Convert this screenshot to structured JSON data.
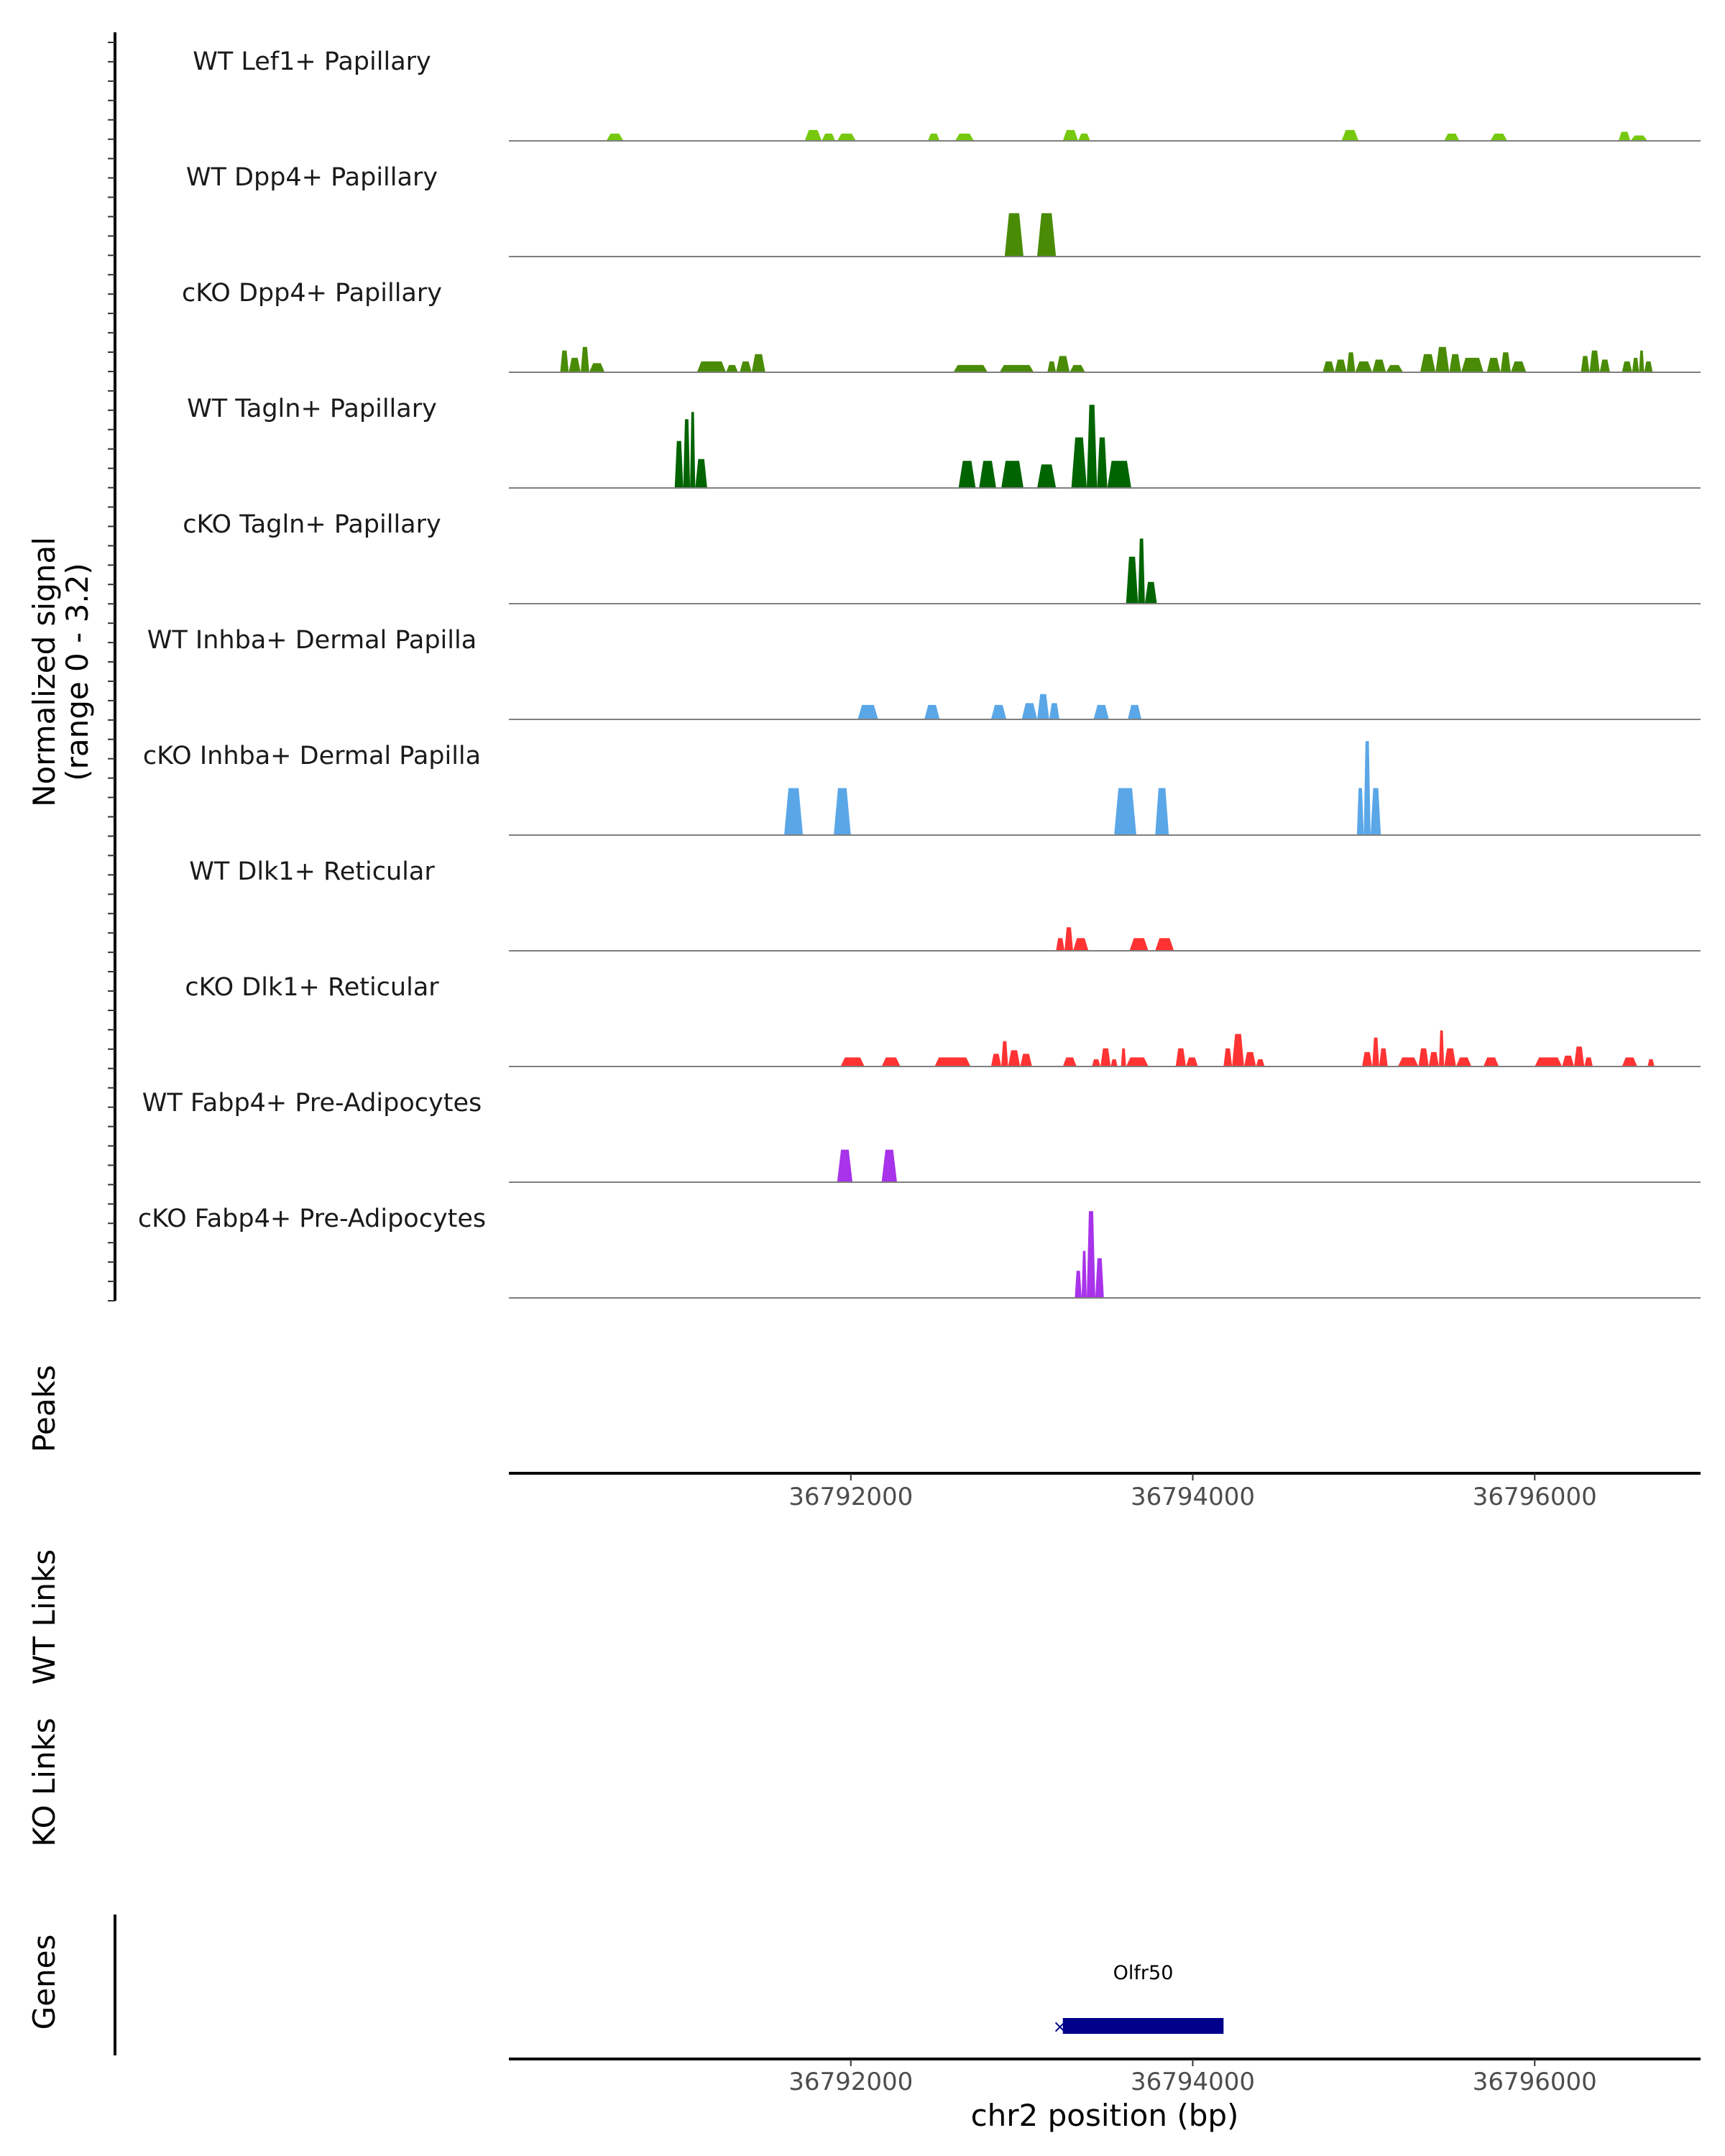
{
  "chart_data": {
    "type": "area",
    "region": {
      "chrom": "chr2",
      "start": 36790000,
      "end": 36796970
    },
    "y_axis_title": "Normalized signal",
    "y_axis_range_label": "(range 0 - 3.2)",
    "ylim": [
      0,
      3.2
    ],
    "x_ticks": [
      36792000,
      36794000,
      36796000
    ],
    "x_tick_labels": [
      "36792000",
      "36794000",
      "36796000"
    ],
    "xlabel": "chr2 position (bp)",
    "tracks": [
      {
        "name": "WT Lef1+ Papillary",
        "color": "#76c80e",
        "segments": [
          [
            36790570,
            36790670,
            0.2
          ],
          [
            36791730,
            36791830,
            0.3
          ],
          [
            36791830,
            36791910,
            0.2
          ],
          [
            36791920,
            36792030,
            0.2
          ],
          [
            36792450,
            36792520,
            0.2
          ],
          [
            36792610,
            36792720,
            0.2
          ],
          [
            36793240,
            36793330,
            0.3
          ],
          [
            36793330,
            36793400,
            0.2
          ],
          [
            36794870,
            36794970,
            0.3
          ],
          [
            36795470,
            36795560,
            0.2
          ],
          [
            36795740,
            36795840,
            0.2
          ],
          [
            36796490,
            36796560,
            0.25
          ],
          [
            36796560,
            36796660,
            0.15
          ]
        ]
      },
      {
        "name": "WT Dpp4+ Papillary",
        "color": "#4a8b05",
        "segments": [
          [
            36792900,
            36793010,
            1.2
          ],
          [
            36793090,
            36793200,
            1.2
          ]
        ]
      },
      {
        "name": "cKO Dpp4+ Papillary",
        "color": "#4a8b05",
        "segments": [
          [
            36790300,
            36790350,
            0.6
          ],
          [
            36790350,
            36790420,
            0.4
          ],
          [
            36790420,
            36790470,
            0.7
          ],
          [
            36790470,
            36790560,
            0.25
          ],
          [
            36791100,
            36791270,
            0.3
          ],
          [
            36791270,
            36791340,
            0.2
          ],
          [
            36791350,
            36791420,
            0.3
          ],
          [
            36791420,
            36791500,
            0.5
          ],
          [
            36792600,
            36792800,
            0.2
          ],
          [
            36792870,
            36793070,
            0.2
          ],
          [
            36793150,
            36793200,
            0.3
          ],
          [
            36793200,
            36793280,
            0.45
          ],
          [
            36793280,
            36793370,
            0.2
          ],
          [
            36794760,
            36794830,
            0.3
          ],
          [
            36794830,
            36794900,
            0.35
          ],
          [
            36794900,
            36794950,
            0.55
          ],
          [
            36794950,
            36795050,
            0.3
          ],
          [
            36795050,
            36795130,
            0.35
          ],
          [
            36795130,
            36795230,
            0.2
          ],
          [
            36795330,
            36795420,
            0.5
          ],
          [
            36795420,
            36795500,
            0.7
          ],
          [
            36795500,
            36795570,
            0.5
          ],
          [
            36795570,
            36795700,
            0.4
          ],
          [
            36795720,
            36795800,
            0.4
          ],
          [
            36795800,
            36795860,
            0.55
          ],
          [
            36795860,
            36795950,
            0.3
          ],
          [
            36796270,
            36796320,
            0.45
          ],
          [
            36796320,
            36796380,
            0.6
          ],
          [
            36796380,
            36796440,
            0.35
          ],
          [
            36796510,
            36796570,
            0.3
          ],
          [
            36796570,
            36796610,
            0.4
          ],
          [
            36796610,
            36796640,
            0.6
          ],
          [
            36796640,
            36796690,
            0.3
          ]
        ]
      },
      {
        "name": "WT Tagln+ Papillary",
        "color": "#006400",
        "segments": [
          [
            36790970,
            36791020,
            1.3
          ],
          [
            36791020,
            36791060,
            1.9
          ],
          [
            36791060,
            36791090,
            2.1
          ],
          [
            36791090,
            36791160,
            0.8
          ],
          [
            36792630,
            36792730,
            0.75
          ],
          [
            36792750,
            36792850,
            0.75
          ],
          [
            36792880,
            36793010,
            0.75
          ],
          [
            36793090,
            36793200,
            0.65
          ],
          [
            36793290,
            36793380,
            1.4
          ],
          [
            36793380,
            36793440,
            2.3
          ],
          [
            36793440,
            36793500,
            1.4
          ],
          [
            36793500,
            36793640,
            0.75
          ]
        ]
      },
      {
        "name": "cKO Tagln+ Papillary",
        "color": "#006400",
        "segments": [
          [
            36793610,
            36793680,
            1.3
          ],
          [
            36793680,
            36793720,
            1.8
          ],
          [
            36793720,
            36793790,
            0.6
          ]
        ]
      },
      {
        "name": "WT Inhba+ Dermal Papilla",
        "color": "#5aa7e8",
        "segments": [
          [
            36792040,
            36792160,
            0.4
          ],
          [
            36792430,
            36792520,
            0.4
          ],
          [
            36792820,
            36792910,
            0.4
          ],
          [
            36793000,
            36793090,
            0.45
          ],
          [
            36793090,
            36793160,
            0.7
          ],
          [
            36793160,
            36793220,
            0.45
          ],
          [
            36793420,
            36793510,
            0.4
          ],
          [
            36793620,
            36793700,
            0.4
          ]
        ]
      },
      {
        "name": "cKO Inhba+ Dermal Papilla",
        "color": "#5aa7e8",
        "segments": [
          [
            36791610,
            36791720,
            1.3
          ],
          [
            36791900,
            36792000,
            1.3
          ],
          [
            36793540,
            36793670,
            1.3
          ],
          [
            36793780,
            36793860,
            1.3
          ],
          [
            36794960,
            36795000,
            1.3
          ],
          [
            36795000,
            36795040,
            2.6
          ],
          [
            36795040,
            36795100,
            1.3
          ]
        ]
      },
      {
        "name": "WT Dlk1+ Reticular",
        "color": "#ff3333",
        "segments": [
          [
            36793200,
            36793250,
            0.35
          ],
          [
            36793250,
            36793300,
            0.65
          ],
          [
            36793300,
            36793390,
            0.35
          ],
          [
            36793630,
            36793740,
            0.35
          ],
          [
            36793780,
            36793890,
            0.35
          ]
        ]
      },
      {
        "name": "cKO Dlk1+ Reticular",
        "color": "#ff3333",
        "segments": [
          [
            36791940,
            36792080,
            0.25
          ],
          [
            36792180,
            36792290,
            0.25
          ],
          [
            36792490,
            36792700,
            0.25
          ],
          [
            36792820,
            36792880,
            0.35
          ],
          [
            36792880,
            36792920,
            0.7
          ],
          [
            36792920,
            36792990,
            0.45
          ],
          [
            36792990,
            36793060,
            0.35
          ],
          [
            36793240,
            36793320,
            0.25
          ],
          [
            36793410,
            36793460,
            0.2
          ],
          [
            36793460,
            36793520,
            0.5
          ],
          [
            36793520,
            36793560,
            0.2
          ],
          [
            36793580,
            36793610,
            0.5
          ],
          [
            36793610,
            36793740,
            0.25
          ],
          [
            36793900,
            36793960,
            0.5
          ],
          [
            36793960,
            36794030,
            0.25
          ],
          [
            36794180,
            36794230,
            0.5
          ],
          [
            36794230,
            36794300,
            0.9
          ],
          [
            36794300,
            36794370,
            0.4
          ],
          [
            36794370,
            36794420,
            0.2
          ],
          [
            36794990,
            36795050,
            0.4
          ],
          [
            36795050,
            36795090,
            0.8
          ],
          [
            36795090,
            36795140,
            0.5
          ],
          [
            36795200,
            36795320,
            0.25
          ],
          [
            36795320,
            36795380,
            0.5
          ],
          [
            36795380,
            36795440,
            0.4
          ],
          [
            36795440,
            36795470,
            1.0
          ],
          [
            36795470,
            36795540,
            0.5
          ],
          [
            36795540,
            36795630,
            0.25
          ],
          [
            36795700,
            36795790,
            0.25
          ],
          [
            36796000,
            36796160,
            0.25
          ],
          [
            36796160,
            36796230,
            0.3
          ],
          [
            36796230,
            36796290,
            0.55
          ],
          [
            36796290,
            36796340,
            0.25
          ],
          [
            36796510,
            36796600,
            0.25
          ],
          [
            36796660,
            36796700,
            0.2
          ]
        ]
      },
      {
        "name": "WT Fabp4+ Pre-Adipocytes",
        "color": "#a833ea",
        "segments": [
          [
            36791920,
            36792010,
            0.9
          ],
          [
            36792180,
            36792270,
            0.9
          ]
        ]
      },
      {
        "name": "cKO Fabp4+ Pre-Adipocytes",
        "color": "#a833ea",
        "segments": [
          [
            36793310,
            36793350,
            0.75
          ],
          [
            36793350,
            36793380,
            1.3
          ],
          [
            36793380,
            36793430,
            2.4
          ],
          [
            36793430,
            36793480,
            1.1
          ]
        ]
      }
    ],
    "side_panels": [
      "Peaks",
      "WT Links",
      "KO Links",
      "Genes"
    ],
    "genes": [
      {
        "name": "Olfr50",
        "start": 36793240,
        "end": 36794180,
        "strand": "-",
        "color": "#00008b"
      }
    ]
  }
}
